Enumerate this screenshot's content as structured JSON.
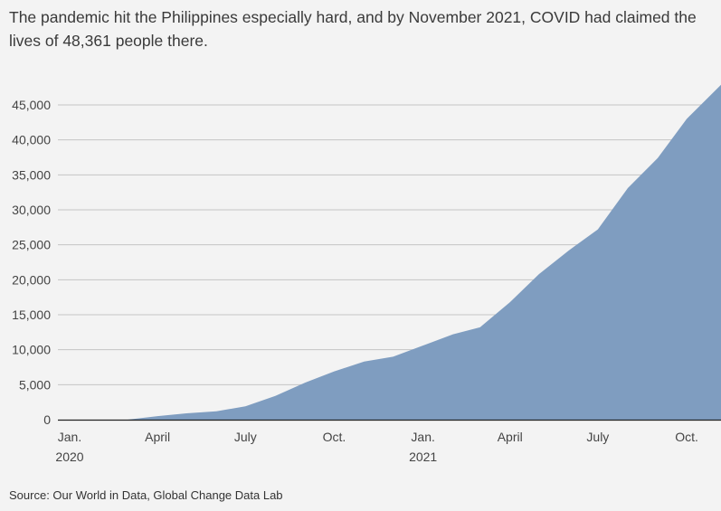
{
  "headline": "The pandemic hit the Philippines especially hard, and by November 2021, COVID had claimed the lives of 48,361 people there.",
  "source": "Source: Our World in Data, Global Change Data Lab",
  "colors": {
    "area": "#7f9dc0",
    "gridline": "#c4c4c4",
    "axis": "#222222",
    "background": "#f3f3f3"
  },
  "chart_data": {
    "type": "area",
    "title": "",
    "xlabel": "",
    "ylabel": "",
    "ylim": [
      0,
      45000
    ],
    "yticks": [
      0,
      5000,
      10000,
      15000,
      20000,
      25000,
      30000,
      35000,
      40000,
      45000
    ],
    "ytick_labels": [
      "0",
      "5,000",
      "10,000",
      "15,000",
      "20,000",
      "25,000",
      "30,000",
      "35,000",
      "40,000",
      "45,000"
    ],
    "xticks": [
      {
        "date": "2020-01-01",
        "label": "Jan.",
        "sublabel": "2020"
      },
      {
        "date": "2020-04-01",
        "label": "April",
        "sublabel": ""
      },
      {
        "date": "2020-07-01",
        "label": "July",
        "sublabel": ""
      },
      {
        "date": "2020-10-01",
        "label": "Oct.",
        "sublabel": ""
      },
      {
        "date": "2021-01-01",
        "label": "Jan.",
        "sublabel": "2021"
      },
      {
        "date": "2021-04-01",
        "label": "April",
        "sublabel": ""
      },
      {
        "date": "2021-07-01",
        "label": "July",
        "sublabel": ""
      },
      {
        "date": "2021-10-01",
        "label": "Oct.",
        "sublabel": ""
      }
    ],
    "grid": true,
    "legend": "none",
    "series": [
      {
        "x": [
          "2020-01-01",
          "2020-03-01",
          "2020-04-01",
          "2020-05-01",
          "2020-06-01",
          "2020-07-01",
          "2020-08-01",
          "2020-09-01",
          "2020-10-01",
          "2020-11-01",
          "2020-12-01",
          "2021-01-01",
          "2021-02-01",
          "2021-03-01",
          "2021-04-01",
          "2021-05-01",
          "2021-06-01",
          "2021-07-01",
          "2021-08-01",
          "2021-09-01",
          "2021-10-01",
          "2021-11-09"
        ],
        "values": [
          0,
          0,
          500,
          900,
          1200,
          1900,
          3400,
          5300,
          6900,
          8300,
          9000,
          10600,
          12200,
          13200,
          16800,
          20800,
          24200,
          27200,
          33100,
          37400,
          43000,
          48361
        ]
      }
    ]
  }
}
